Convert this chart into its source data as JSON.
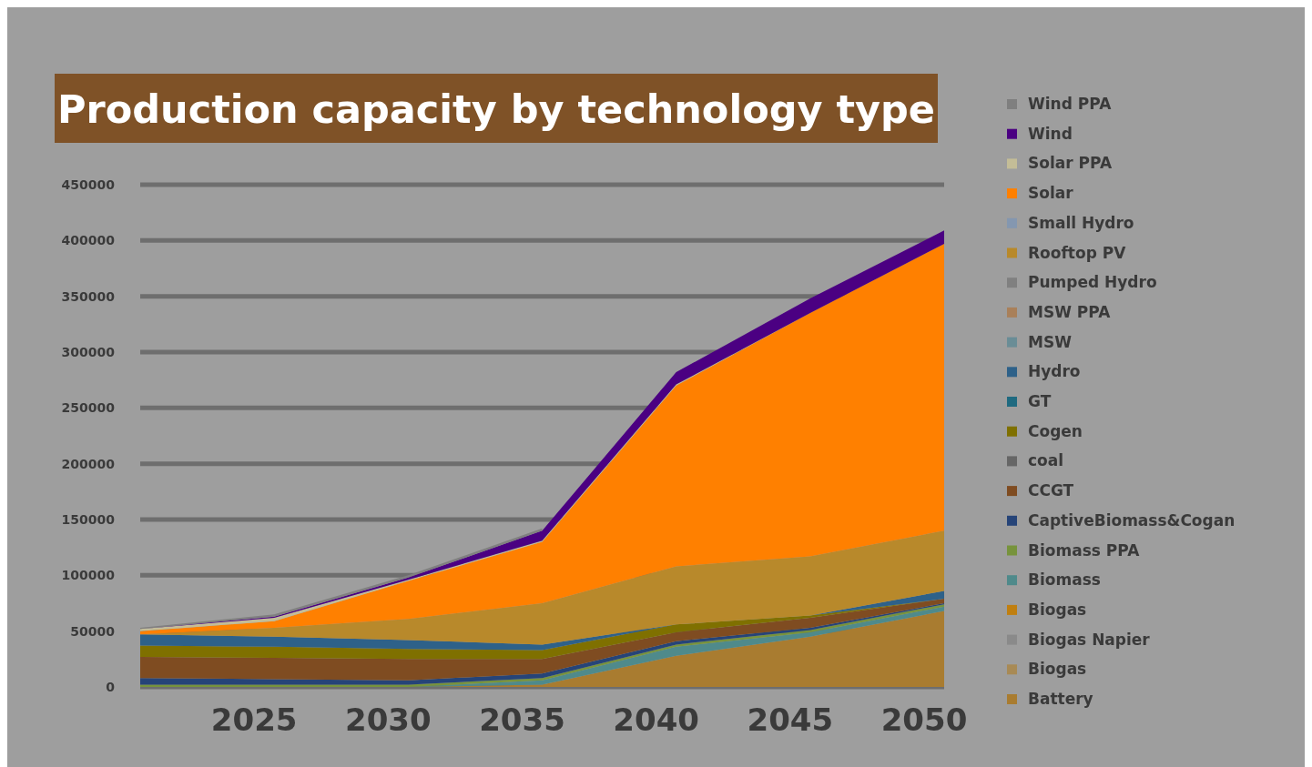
{
  "chart_data": {
    "type": "area",
    "stacked": true,
    "title": "Production capacity by technology type",
    "categories": [
      null,
      "2025",
      "2030",
      "2035",
      "2040",
      "2045",
      "2050"
    ],
    "ylim": [
      0,
      450000
    ],
    "yticks": [
      0,
      50000,
      100000,
      150000,
      200000,
      250000,
      300000,
      350000,
      400000,
      450000
    ],
    "grid": "y",
    "legend": "right",
    "series": [
      {
        "name": "Battery",
        "color": "#a97c30",
        "values": [
          0,
          0,
          0,
          2000,
          28000,
          45000,
          68000
        ]
      },
      {
        "name": "Biogas",
        "color": "#a88a55",
        "values": [
          null,
          null,
          null,
          null,
          null,
          null,
          null
        ]
      },
      {
        "name": "Biogas Napier",
        "color": "#8a8a8a",
        "values": [
          null,
          null,
          null,
          null,
          null,
          null,
          null
        ]
      },
      {
        "name": "Biogas",
        "color": "#c07f10",
        "values": [
          null,
          null,
          null,
          null,
          null,
          null,
          null
        ]
      },
      {
        "name": "Biomass",
        "color": "#4f8a8b",
        "values": [
          0,
          0,
          0,
          4000,
          8000,
          4000,
          4000
        ]
      },
      {
        "name": "Biomass PPA",
        "color": "#77933c",
        "values": [
          2000,
          2000,
          2000,
          2000,
          2000,
          2000,
          2000
        ]
      },
      {
        "name": "CaptiveBiomass&Cogan",
        "color": "#264478",
        "values": [
          6000,
          5000,
          4000,
          4000,
          3000,
          2000,
          1000
        ]
      },
      {
        "name": "CCGT",
        "color": "#7f4c21",
        "values": [
          19000,
          19000,
          19000,
          13000,
          8000,
          9000,
          4000
        ]
      },
      {
        "name": "coal",
        "color": "#666666",
        "values": [
          null,
          null,
          null,
          null,
          null,
          null,
          null
        ]
      },
      {
        "name": "Cogen",
        "color": "#7f7000",
        "values": [
          10000,
          10000,
          9000,
          8000,
          7000,
          2000,
          0
        ]
      },
      {
        "name": "GT",
        "color": "#1f6a80",
        "values": [
          null,
          null,
          null,
          null,
          null,
          null,
          null
        ]
      },
      {
        "name": "Hydro",
        "color": "#2e6189",
        "values": [
          10000,
          9000,
          8000,
          5000,
          0,
          0,
          7000
        ]
      },
      {
        "name": "MSW",
        "color": "#6a8d96",
        "values": [
          null,
          null,
          null,
          null,
          null,
          null,
          null
        ]
      },
      {
        "name": "MSW PPA",
        "color": "#a9805a",
        "values": [
          null,
          null,
          null,
          null,
          null,
          null,
          null
        ]
      },
      {
        "name": "Pumped Hydro",
        "color": "#808080",
        "values": [
          null,
          null,
          null,
          null,
          null,
          null,
          null
        ]
      },
      {
        "name": "Rooftop PV",
        "color": "#b8892b",
        "values": [
          0,
          8000,
          19000,
          37000,
          52000,
          53000,
          54000
        ]
      },
      {
        "name": "Small Hydro",
        "color": "#8497b0",
        "values": [
          null,
          null,
          null,
          null,
          null,
          null,
          null
        ]
      },
      {
        "name": "Solar",
        "color": "#ff8000",
        "values": [
          3000,
          6000,
          34000,
          55000,
          162000,
          218000,
          257000
        ]
      },
      {
        "name": "Solar PPA",
        "color": "#c4bd97",
        "values": [
          2000,
          3000,
          1000,
          1000,
          1000,
          0,
          0
        ]
      },
      {
        "name": "Wind",
        "color": "#4b0082",
        "values": [
          0,
          1000,
          2000,
          9000,
          11000,
          13000,
          12000
        ]
      },
      {
        "name": "Wind PPA",
        "color": "#7f7f7f",
        "values": [
          1000,
          2000,
          2000,
          2000,
          null,
          null,
          null
        ]
      }
    ]
  }
}
